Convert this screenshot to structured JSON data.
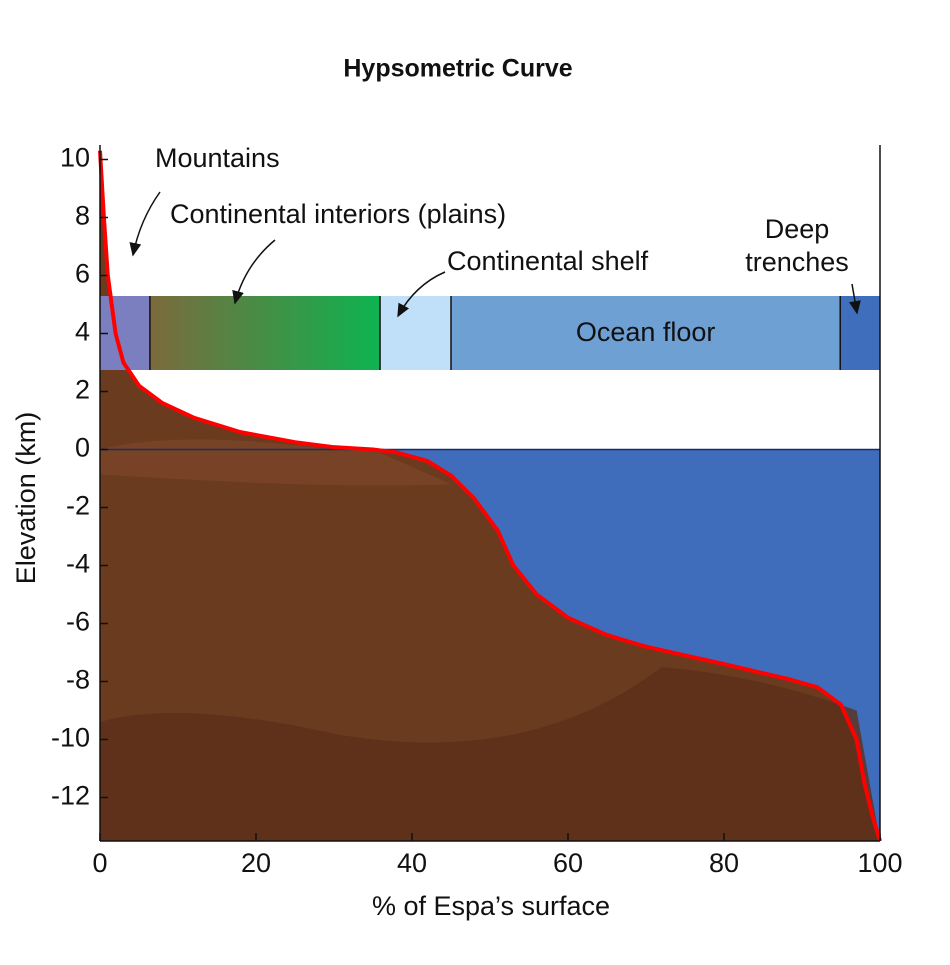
{
  "chart_data": {
    "type": "line",
    "title": "Hypsometric Curve",
    "x_label": "% of Espa’s surface",
    "y_label": "Elevation (km)",
    "x": [
      0,
      0.5,
      1,
      2,
      3,
      5,
      8,
      12,
      18,
      25,
      30,
      35,
      38,
      42,
      45,
      48,
      51,
      53,
      56,
      60,
      65,
      70,
      80,
      88,
      92,
      95,
      97,
      98,
      99,
      100
    ],
    "values": [
      10.3,
      8,
      6,
      4,
      3,
      2.2,
      1.6,
      1.1,
      0.6,
      0.25,
      0.08,
      0,
      -0.1,
      -0.4,
      -0.9,
      -1.7,
      -2.8,
      -4,
      -5,
      -5.8,
      -6.4,
      -6.8,
      -7.4,
      -7.9,
      -8.2,
      -8.8,
      -10,
      -11.5,
      -12.6,
      -13.5
    ],
    "color": "#ff0000",
    "land_color": "#6b3b20",
    "ocean_color": "#3f6dbb",
    "xlim": [
      0,
      100
    ],
    "xticks": [
      0,
      20,
      40,
      60,
      80,
      100
    ],
    "ylim": [
      -13.5,
      10.5
    ],
    "yticks": [
      10,
      8,
      6,
      4,
      2,
      0,
      -2,
      -4,
      -6,
      -8,
      -10,
      -12
    ],
    "zones": [
      {
        "label": "Mountains",
        "start": 0,
        "end": 6.4,
        "color": [
          "#7b7fbf"
        ]
      },
      {
        "label": "Continental interiors (plains)",
        "start": 6.4,
        "end": 35.9,
        "color": [
          "#7c6a3c",
          "#0db350"
        ]
      },
      {
        "label": "Continental shelf",
        "start": 35.9,
        "end": 45,
        "color": [
          "#bfe0f8"
        ]
      },
      {
        "label": "Ocean floor",
        "start": 45,
        "end": 94.9,
        "color": [
          "#6fa0d4"
        ]
      },
      {
        "label": [
          "Deep",
          "trenches"
        ],
        "start": 94.9,
        "end": 100,
        "color": [
          "#3f6fbc"
        ]
      }
    ]
  }
}
